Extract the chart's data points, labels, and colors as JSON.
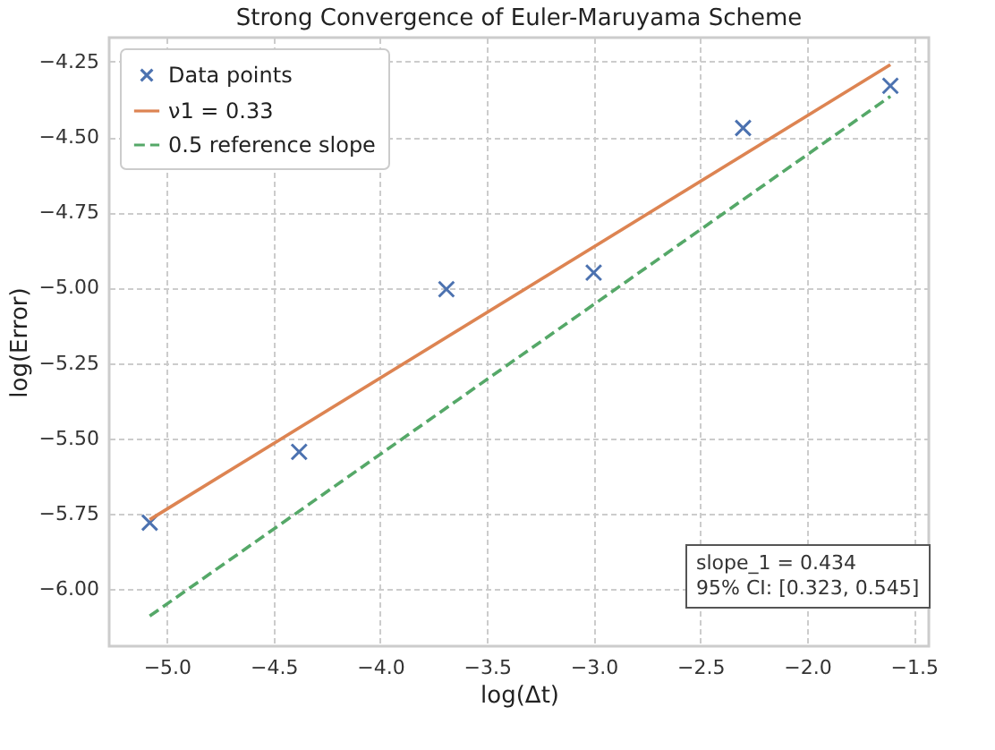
{
  "chart_data": {
    "type": "scatter",
    "title": "Strong Convergence of Euler-Maruyama Scheme",
    "xlabel": "log(Δt)",
    "ylabel": "log(Error)",
    "series": [
      {
        "name": "Data points",
        "color": "#4c72b0",
        "marker": "cross",
        "x": [
          -5.08,
          -4.38,
          -3.69,
          -3.0,
          -2.3,
          -1.61
        ],
        "values": [
          -5.78,
          -5.545,
          -5.005,
          -4.95,
          -4.47,
          -4.33
        ]
      },
      {
        "name": "ν1 = 0.33",
        "type": "line",
        "color": "#dd8452",
        "line_style": "solid",
        "x": [
          -5.08,
          -1.61
        ],
        "values": [
          -5.77,
          -4.26
        ]
      },
      {
        "name": "0.5 reference slope",
        "type": "line",
        "color": "#55a868",
        "line_style": "dashed",
        "x": [
          -5.08,
          -1.61
        ],
        "values": [
          -6.09,
          -4.365
        ]
      }
    ],
    "xlim": [
      -5.27,
      -1.43
    ],
    "ylim": [
      -6.19,
      -4.17
    ],
    "xticks": [
      {
        "value": -5,
        "label": "−5.0"
      },
      {
        "value": -4.5,
        "label": "−4.5"
      },
      {
        "value": -4,
        "label": "−4.0"
      },
      {
        "value": -3.5,
        "label": "−3.5"
      },
      {
        "value": -3,
        "label": "−3.0"
      },
      {
        "value": -2.5,
        "label": "−2.5"
      },
      {
        "value": -2,
        "label": "−2.0"
      },
      {
        "value": -1.5,
        "label": "−1.5"
      }
    ],
    "yticks": [
      {
        "value": -6,
        "label": "−6.00"
      },
      {
        "value": -5.75,
        "label": "−5.75"
      },
      {
        "value": -5.5,
        "label": "−5.50"
      },
      {
        "value": -5.25,
        "label": "−5.25"
      },
      {
        "value": -5,
        "label": "−5.00"
      },
      {
        "value": -4.75,
        "label": "−4.75"
      },
      {
        "value": -4.5,
        "label": "−4.50"
      },
      {
        "value": -4.25,
        "label": "−4.25"
      }
    ],
    "grid": true,
    "legend": "top left",
    "annotations": [
      "slope_1 = 0.434\n95% CI: [0.323, 0.545]"
    ]
  }
}
